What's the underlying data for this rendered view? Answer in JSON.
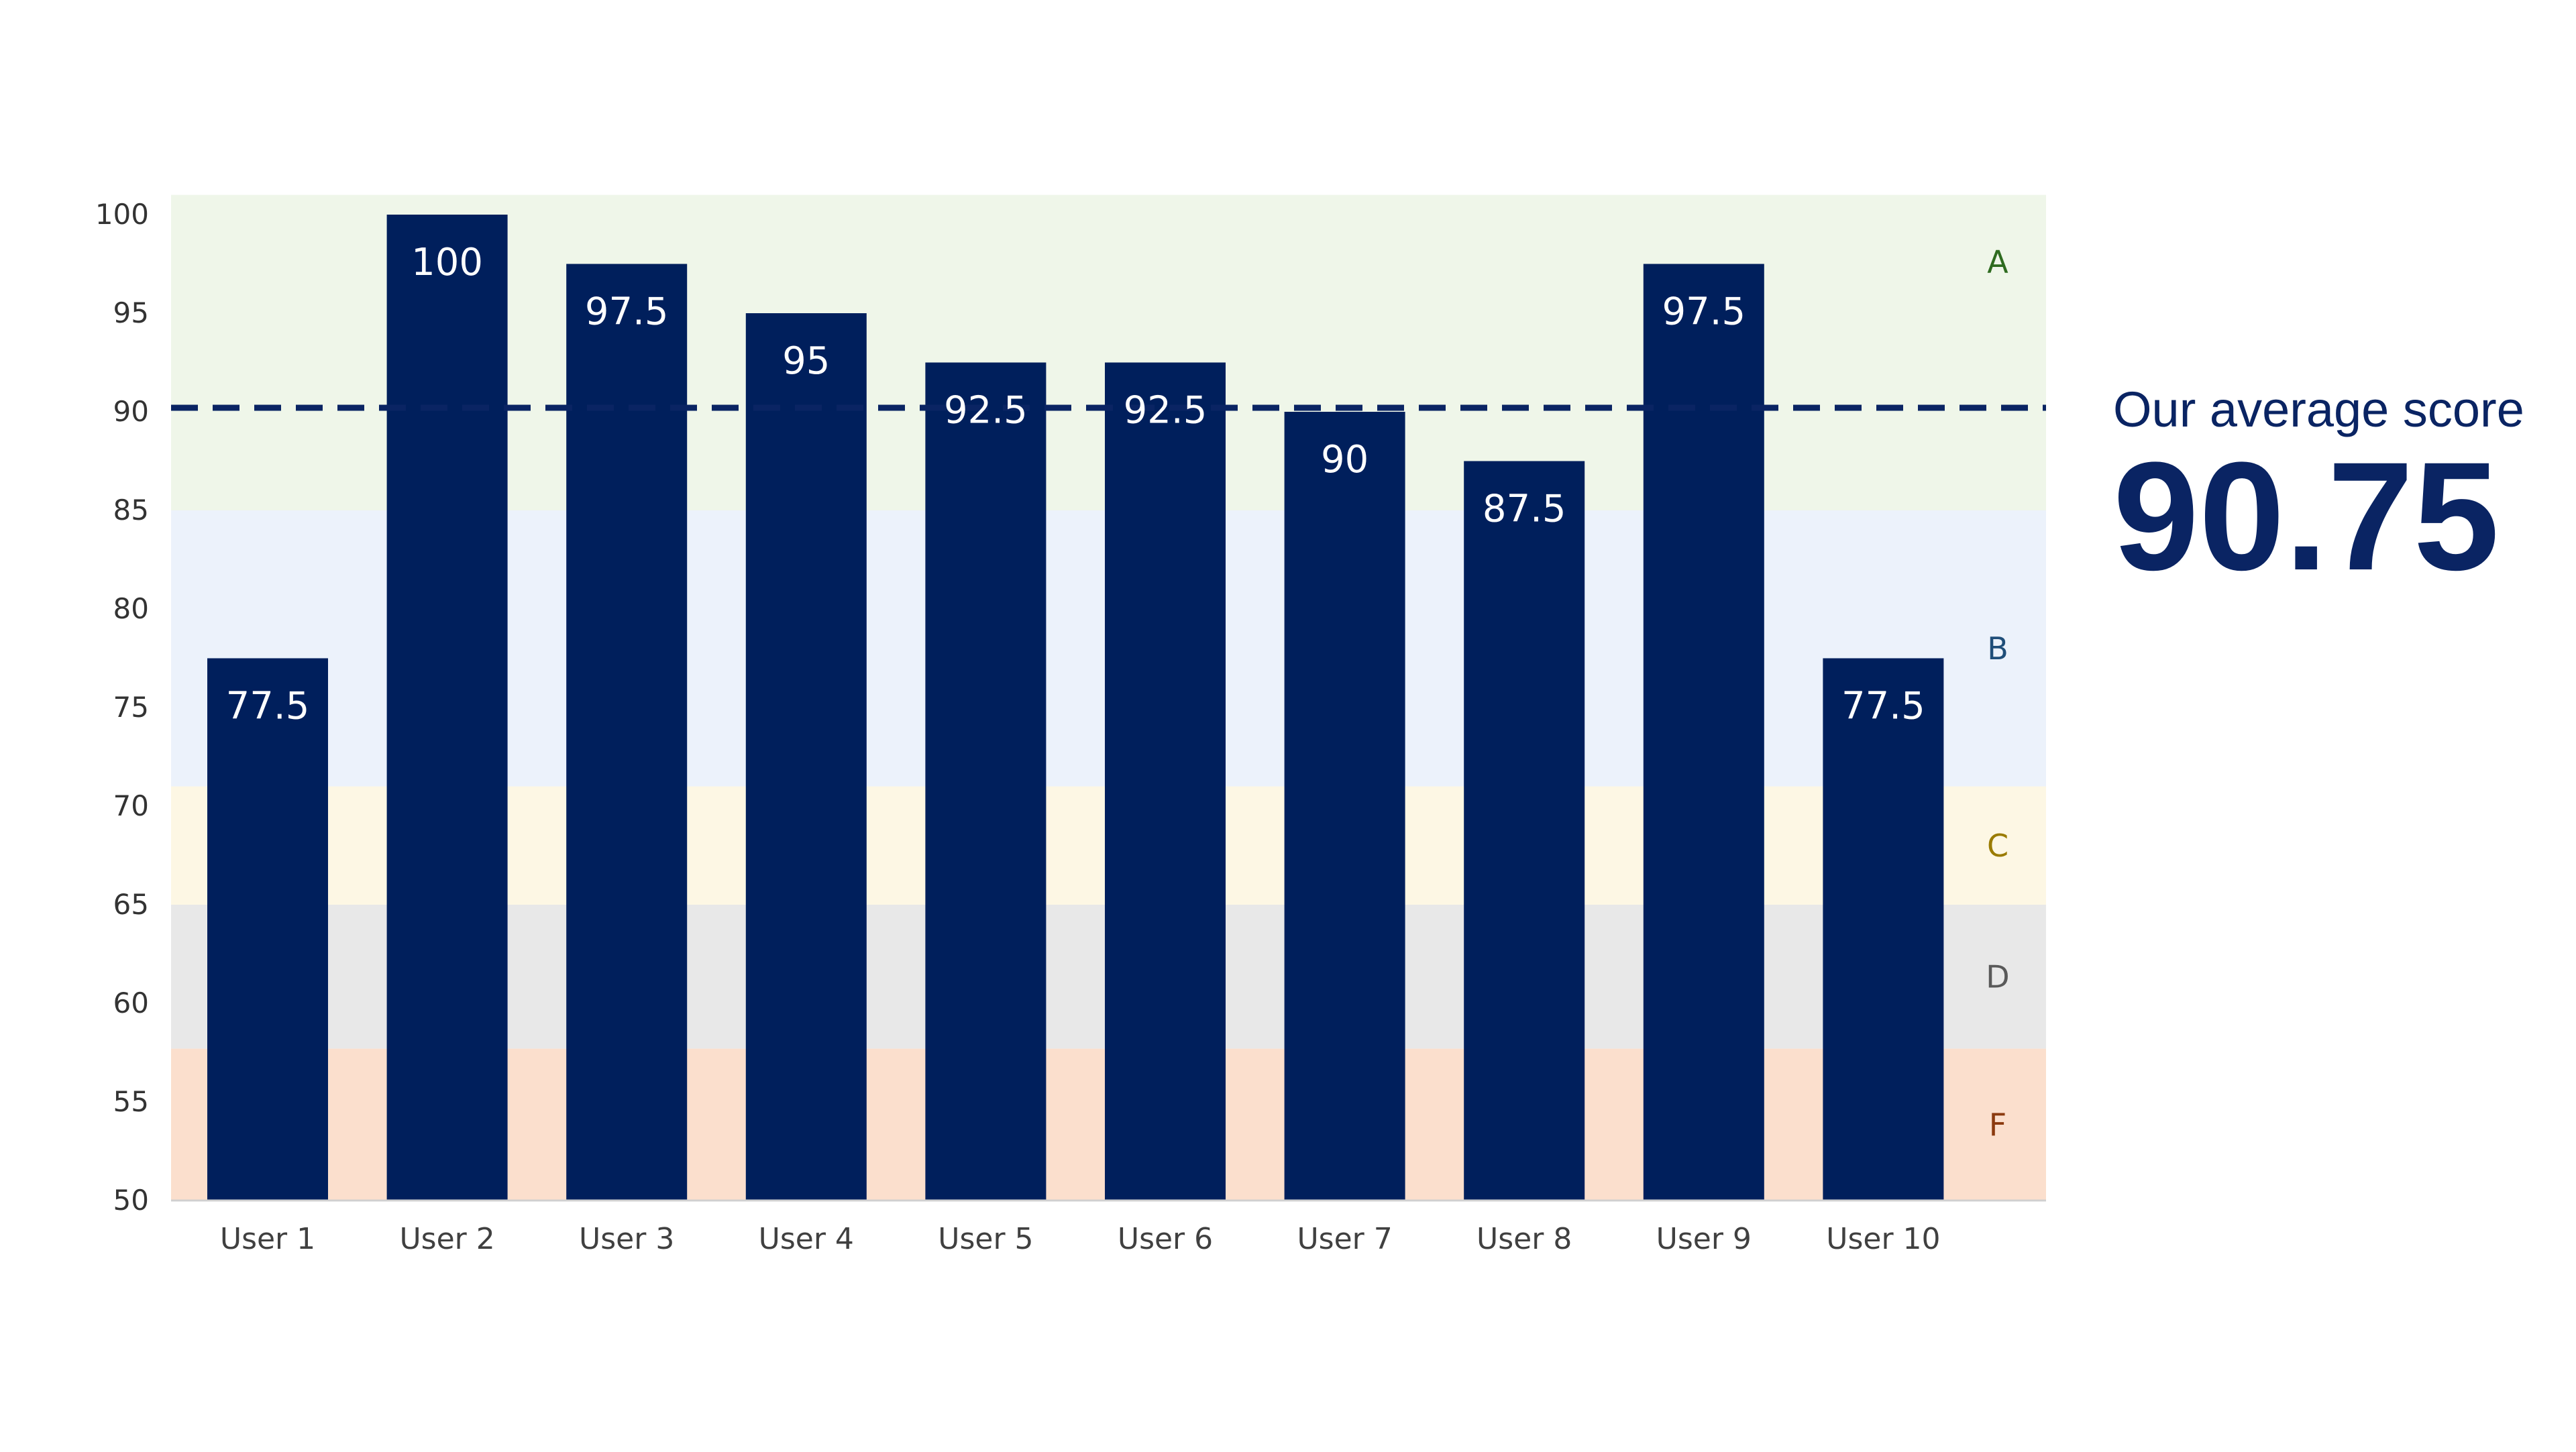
{
  "chart_data": {
    "type": "bar",
    "title": "",
    "xlabel": "",
    "ylabel": "",
    "ylim": [
      50,
      100
    ],
    "yticks": [
      50,
      55,
      60,
      65,
      70,
      75,
      80,
      85,
      90,
      95,
      100
    ],
    "categories": [
      "User 1",
      "User 2",
      "User 3",
      "User 4",
      "User 5",
      "User 6",
      "User 7",
      "User 8",
      "User 9",
      "User 10"
    ],
    "values": [
      77.5,
      100,
      97.5,
      95,
      92.5,
      92.5,
      90,
      87.5,
      97.5,
      77.5
    ],
    "data_labels": [
      "77.5",
      "100",
      "97.5",
      "95",
      "92.5",
      "92.5",
      "90",
      "87.5",
      "97.5",
      "77.5"
    ],
    "bar_color": "#001f5c",
    "grade_bands": [
      {
        "label": "A",
        "from": 85,
        "to": 101,
        "color": "#eff6e9",
        "text_color": "#2e6b1f"
      },
      {
        "label": "B",
        "from": 71,
        "to": 85,
        "color": "#ecf2fb",
        "text_color": "#1f4e79"
      },
      {
        "label": "C",
        "from": 65,
        "to": 71,
        "color": "#fdf7e4",
        "text_color": "#9a7b00"
      },
      {
        "label": "D",
        "from": 57.7,
        "to": 65,
        "color": "#e8e8e8",
        "text_color": "#595959"
      },
      {
        "label": "F",
        "from": 50,
        "to": 57.7,
        "color": "#fbdfcd",
        "text_color": "#8b3a0f"
      }
    ],
    "reference_line": {
      "value": 90,
      "style": "dashed",
      "color": "#0a2463"
    }
  },
  "average": {
    "label": "Our average score",
    "value": "90.75"
  }
}
